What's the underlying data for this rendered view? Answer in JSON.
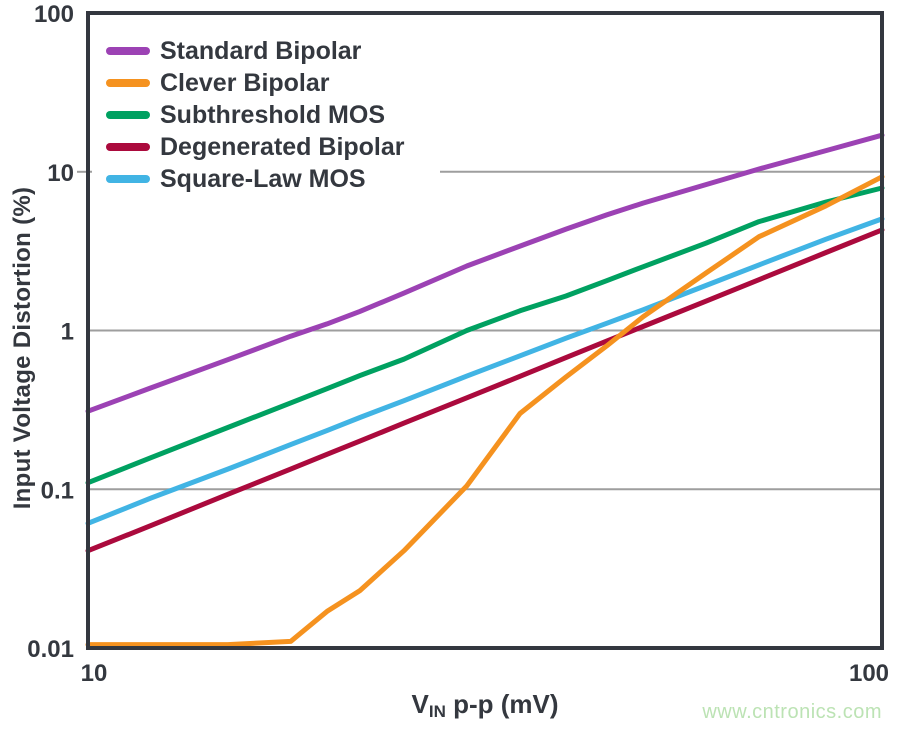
{
  "chart_data": {
    "type": "line",
    "xlabel_symbol": "V",
    "xlabel_subscript": "IN",
    "xlabel_rest": " p-p (mV)",
    "ylabel": "Input Voltage Distortion (%)",
    "xscale": "log",
    "yscale": "log",
    "xlim": [
      10,
      100
    ],
    "ylim": [
      0.01,
      100
    ],
    "xticks": [
      10,
      100
    ],
    "yticks": [
      100,
      10,
      1,
      0.1,
      0.01
    ],
    "grid": "horizontal-decade-lines",
    "legend_position": "top-left",
    "x": [
      10,
      12,
      15,
      18,
      20,
      22,
      25,
      30,
      35,
      40,
      45,
      50,
      60,
      70,
      85,
      100
    ],
    "series": [
      {
        "name": "Standard Bipolar",
        "color": "#9C42B4",
        "values": [
          0.31,
          0.435,
          0.655,
          0.92,
          1.1,
          1.32,
          1.72,
          2.55,
          3.4,
          4.35,
          5.35,
          6.35,
          8.3,
          10.4,
          13.6,
          17.0
        ]
      },
      {
        "name": "Clever Bipolar",
        "color": "#F5921F",
        "values": [
          0.0105,
          0.0105,
          0.0105,
          0.011,
          0.017,
          0.023,
          0.041,
          0.105,
          0.3,
          0.51,
          0.8,
          1.22,
          2.3,
          3.9,
          6.1,
          9.3
        ]
      },
      {
        "name": "Subthreshold MOS",
        "color": "#00A161",
        "values": [
          0.11,
          0.158,
          0.245,
          0.35,
          0.43,
          0.52,
          0.66,
          1.0,
          1.33,
          1.65,
          2.06,
          2.52,
          3.55,
          4.85,
          6.45,
          7.9
        ]
      },
      {
        "name": "Degenerated Bipolar",
        "color": "#AB0A3D",
        "values": [
          0.041,
          0.059,
          0.093,
          0.134,
          0.166,
          0.201,
          0.261,
          0.377,
          0.515,
          0.675,
          0.857,
          1.06,
          1.53,
          2.09,
          3.1,
          4.3
        ]
      },
      {
        "name": "Square-Law MOS",
        "color": "#41B4E4",
        "values": [
          0.061,
          0.088,
          0.134,
          0.191,
          0.234,
          0.283,
          0.361,
          0.516,
          0.693,
          0.894,
          1.11,
          1.35,
          1.92,
          2.59,
          3.76,
          5.05
        ]
      }
    ],
    "draw_order": [
      0,
      2,
      3,
      4,
      1
    ],
    "line_width": 5
  },
  "frame": {
    "axis_color": "#33373F",
    "grid_color": "#9E9E9E",
    "text_color": "#34383F",
    "background": "#FFFFFF"
  },
  "watermark": {
    "text": "www.cntronics.com",
    "color": "#BCE3B4"
  }
}
